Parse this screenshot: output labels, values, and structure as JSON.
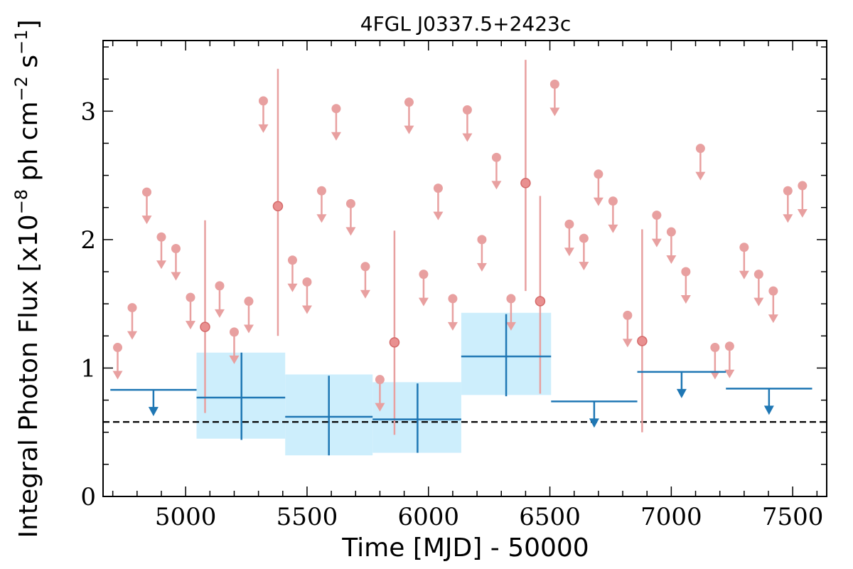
{
  "chart_data": {
    "type": "scatter",
    "title": "4FGL J0337.5+2423c",
    "xlabel": "Time [MJD] - 50000",
    "ylabel_main": "Integral Photon Flux [x10",
    "ylabel_exp1": "−8",
    "ylabel_mid": " ph cm",
    "ylabel_exp2": "−2",
    "ylabel_s": " s",
    "ylabel_exp3": "−1",
    "ylabel_end": "]",
    "xlim": [
      4660,
      7640
    ],
    "ylim": [
      0,
      3.55
    ],
    "x_ticks": [
      5000,
      5500,
      6000,
      6500,
      7000,
      7500
    ],
    "y_ticks": [
      0,
      1,
      2,
      3
    ],
    "reference_line": {
      "y": 0.58,
      "style": "dashed",
      "color": "#000000"
    },
    "short_bins": {
      "color": "#e8a0a0",
      "upper_limits": [
        {
          "x": 4720,
          "y": 1.16
        },
        {
          "x": 4780,
          "y": 1.47
        },
        {
          "x": 4840,
          "y": 2.37
        },
        {
          "x": 4900,
          "y": 2.02
        },
        {
          "x": 4960,
          "y": 1.93
        },
        {
          "x": 5020,
          "y": 1.55
        },
        {
          "x": 5140,
          "y": 1.64
        },
        {
          "x": 5200,
          "y": 1.28
        },
        {
          "x": 5260,
          "y": 1.52
        },
        {
          "x": 5320,
          "y": 3.08
        },
        {
          "x": 5440,
          "y": 1.84
        },
        {
          "x": 5500,
          "y": 1.67
        },
        {
          "x": 5560,
          "y": 2.38
        },
        {
          "x": 5620,
          "y": 3.02
        },
        {
          "x": 5680,
          "y": 2.28
        },
        {
          "x": 5740,
          "y": 1.79
        },
        {
          "x": 5800,
          "y": 0.91
        },
        {
          "x": 5920,
          "y": 3.07
        },
        {
          "x": 5980,
          "y": 1.73
        },
        {
          "x": 6040,
          "y": 2.4
        },
        {
          "x": 6100,
          "y": 1.54
        },
        {
          "x": 6160,
          "y": 3.01
        },
        {
          "x": 6220,
          "y": 2.0
        },
        {
          "x": 6280,
          "y": 2.64
        },
        {
          "x": 6340,
          "y": 1.54
        },
        {
          "x": 6520,
          "y": 3.21
        },
        {
          "x": 6580,
          "y": 2.12
        },
        {
          "x": 6640,
          "y": 2.01
        },
        {
          "x": 6700,
          "y": 2.51
        },
        {
          "x": 6760,
          "y": 2.3
        },
        {
          "x": 6820,
          "y": 1.41
        },
        {
          "x": 6940,
          "y": 2.19
        },
        {
          "x": 7000,
          "y": 2.06
        },
        {
          "x": 7060,
          "y": 1.75
        },
        {
          "x": 7120,
          "y": 2.71
        },
        {
          "x": 7180,
          "y": 1.16
        },
        {
          "x": 7240,
          "y": 1.17
        },
        {
          "x": 7300,
          "y": 1.94
        },
        {
          "x": 7360,
          "y": 1.73
        },
        {
          "x": 7420,
          "y": 1.6
        },
        {
          "x": 7480,
          "y": 2.38
        },
        {
          "x": 7540,
          "y": 2.42
        }
      ],
      "detections": [
        {
          "x": 5080,
          "y": 1.32,
          "y_low": 0.65,
          "y_high": 2.15
        },
        {
          "x": 5380,
          "y": 2.26,
          "y_low": 1.25,
          "y_high": 3.33
        },
        {
          "x": 5860,
          "y": 1.2,
          "y_low": 0.48,
          "y_high": 2.07
        },
        {
          "x": 6400,
          "y": 2.44,
          "y_low": 1.6,
          "y_high": 3.4
        },
        {
          "x": 6460,
          "y": 1.52,
          "y_low": 0.8,
          "y_high": 2.34
        },
        {
          "x": 6880,
          "y": 1.21,
          "y_low": 0.5,
          "y_high": 2.08
        }
      ]
    },
    "long_bins": {
      "color": "#1f77b4",
      "band_color": "#cdeefc",
      "upper_limits": [
        {
          "x_start": 4690,
          "x_end": 5045,
          "y": 0.83
        },
        {
          "x_start": 6505,
          "x_end": 6860,
          "y": 0.74
        },
        {
          "x_start": 6860,
          "x_end": 7225,
          "y": 0.97
        },
        {
          "x_start": 7225,
          "x_end": 7580,
          "y": 0.84
        }
      ],
      "detections": [
        {
          "x_start": 5045,
          "x_end": 5410,
          "x": 5230,
          "y": 0.77,
          "y_low": 0.44,
          "y_high": 1.12,
          "band_low": 0.45,
          "band_high": 1.12
        },
        {
          "x_start": 5410,
          "x_end": 5770,
          "x": 5590,
          "y": 0.62,
          "y_low": 0.32,
          "y_high": 0.94,
          "band_low": 0.32,
          "band_high": 0.95
        },
        {
          "x_start": 5770,
          "x_end": 6135,
          "x": 5955,
          "y": 0.6,
          "y_low": 0.34,
          "y_high": 0.88,
          "band_low": 0.34,
          "band_high": 0.89
        },
        {
          "x_start": 6135,
          "x_end": 6505,
          "x": 6320,
          "y": 1.09,
          "y_low": 0.78,
          "y_high": 1.42,
          "band_low": 0.79,
          "band_high": 1.43
        }
      ]
    }
  }
}
